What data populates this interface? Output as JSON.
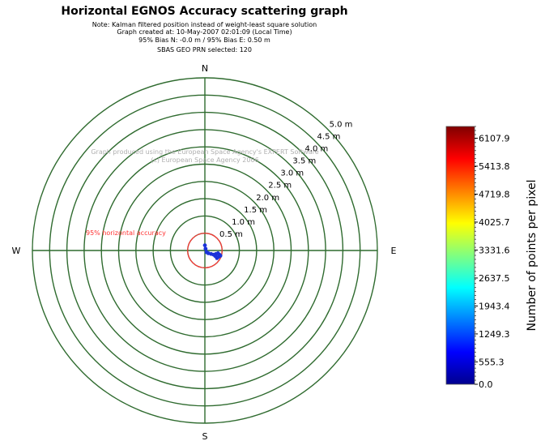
{
  "title": "Horizontal EGNOS Accuracy scattering graph",
  "notes": [
    "Note: Kalman filtered position instead of weight-least square solution",
    "Graph created at: 10-May-2007 02:01:09 (Local Time)",
    "95% Bias N: -0.0 m / 95% Bias E: 0.50 m",
    "SBAS GEO PRN selected: 120"
  ],
  "watermark": [
    "Graph produced using the European Space Agency's EXPERT Software",
    "(c) European Space Agency 2006"
  ],
  "compass": {
    "north": "N",
    "south": "S",
    "east": "E",
    "west": "W"
  },
  "accuracy_label": "95% horizontal accuracy",
  "colors": {
    "grid": "#2f6b2f",
    "accuracy_circle": "#ff3333",
    "points": "#1a33d9",
    "background": "#ffffff"
  },
  "chart_data": {
    "type": "scatter",
    "coordinate_system": "polar",
    "ring_radii_m": [
      0.5,
      1.0,
      1.5,
      2.0,
      2.5,
      3.0,
      3.5,
      4.0,
      4.5,
      5.0
    ],
    "ring_labels": [
      "0.5 m",
      "1.0 m",
      "1.5 m",
      "2.0 m",
      "2.5 m",
      "3.0 m",
      "3.5 m",
      "4.0 m",
      "4.5 m",
      "5.0 m"
    ],
    "max_radius_m": 5.0,
    "accuracy_95_radius_m": 0.5,
    "points_east_north_m": [
      [
        0.0,
        0.15
      ],
      [
        0.02,
        0.05
      ],
      [
        0.05,
        -0.05
      ],
      [
        0.1,
        -0.08
      ],
      [
        0.18,
        -0.1
      ],
      [
        0.25,
        -0.12
      ],
      [
        0.32,
        -0.1
      ],
      [
        0.38,
        -0.08
      ],
      [
        0.42,
        -0.12
      ],
      [
        0.45,
        -0.15
      ],
      [
        0.4,
        -0.18
      ],
      [
        0.35,
        -0.22
      ],
      [
        0.3,
        -0.16
      ]
    ],
    "colorbar": {
      "label": "Number of points per pixel",
      "ticks": [
        "0.0",
        "555.3",
        "1249.3",
        "1943.4",
        "2637.5",
        "3331.6",
        "4025.7",
        "4719.8",
        "5413.8",
        "6107.9"
      ],
      "range": [
        0,
        6400
      ],
      "colors": [
        "#00008f",
        "#0000ff",
        "#0080ff",
        "#00ffff",
        "#80ff80",
        "#ffff00",
        "#ff8000",
        "#ff0000",
        "#800000"
      ]
    }
  }
}
